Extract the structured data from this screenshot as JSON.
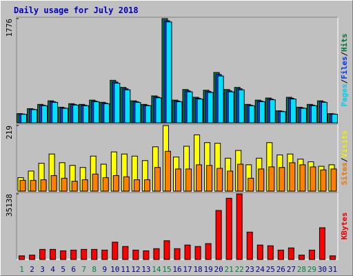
{
  "chart_data": [
    {
      "type": "bar",
      "title": "Daily usage for July 2018",
      "ylim": [
        0,
        1776
      ],
      "yticks": [
        1776
      ],
      "legend_separator": "/",
      "series": [
        {
          "name": "Hits",
          "color": "#008040",
          "values": [
            157,
            242,
            314,
            375,
            266,
            326,
            314,
            387,
            350,
            725,
            604,
            375,
            314,
            459,
            1776,
            387,
            568,
            435,
            556,
            858,
            568,
            604,
            314,
            387,
            423,
            205,
            435,
            266,
            314,
            375,
            157
          ]
        },
        {
          "name": "Files",
          "color": "#0040ff",
          "values": [
            150,
            232,
            301,
            360,
            255,
            313,
            301,
            371,
            336,
            696,
            580,
            360,
            301,
            441,
            1740,
            371,
            545,
            418,
            534,
            824,
            545,
            580,
            301,
            371,
            406,
            197,
            418,
            255,
            301,
            360,
            151
          ]
        },
        {
          "name": "Pages",
          "color": "#00e0ff",
          "values": [
            145,
            225,
            292,
            349,
            247,
            303,
            292,
            360,
            326,
            675,
            562,
            349,
            292,
            427,
            1720,
            360,
            528,
            405,
            517,
            798,
            528,
            562,
            292,
            360,
            393,
            191,
            405,
            247,
            292,
            349,
            146
          ]
        }
      ]
    },
    {
      "type": "bar",
      "ylim": [
        0,
        219
      ],
      "yticks": [
        219
      ],
      "legend_separator": "/",
      "series": [
        {
          "name": "Visits",
          "color": "#ffff00",
          "values": [
            45,
            67,
            93,
            124,
            95,
            86,
            79,
            117,
            90,
            131,
            124,
            117,
            102,
            148,
            219,
            114,
            150,
            188,
            162,
            160,
            110,
            136,
            88,
            110,
            162,
            121,
            124,
            107,
            98,
            83,
            88
          ]
        },
        {
          "name": "Sites",
          "color": "#ff8000",
          "values": [
            36,
            36,
            38,
            52,
            43,
            33,
            38,
            57,
            45,
            52,
            48,
            38,
            38,
            79,
            133,
            74,
            74,
            88,
            86,
            76,
            67,
            90,
            43,
            74,
            81,
            79,
            95,
            88,
            81,
            71,
            74
          ]
        }
      ]
    },
    {
      "type": "bar",
      "ylim": [
        0,
        35138
      ],
      "yticks": [
        35138
      ],
      "categories": [
        "1",
        "2",
        "3",
        "4",
        "5",
        "6",
        "7",
        "8",
        "9",
        "10",
        "11",
        "12",
        "13",
        "14",
        "15",
        "16",
        "17",
        "18",
        "19",
        "20",
        "21",
        "22",
        "23",
        "24",
        "25",
        "26",
        "27",
        "28",
        "29",
        "30",
        "31"
      ],
      "category_colors": [
        "#008040",
        "#000080",
        "#000080",
        "#000080",
        "#000080",
        "#000080",
        "#008040",
        "#008040",
        "#000080",
        "#000080",
        "#000080",
        "#000080",
        "#000080",
        "#008040",
        "#008040",
        "#000080",
        "#000080",
        "#000080",
        "#000080",
        "#000080",
        "#008040",
        "#008040",
        "#000080",
        "#000080",
        "#000080",
        "#000080",
        "#000080",
        "#008040",
        "#008040",
        "#000080",
        "#000080"
      ],
      "series": [
        {
          "name": "KBytes",
          "color": "#ff0000",
          "values": [
            1930,
            2316,
            5400,
            5400,
            4630,
            5020,
            5400,
            5400,
            5020,
            9260,
            6950,
            5020,
            4630,
            5790,
            10040,
            5790,
            7720,
            6950,
            8490,
            26250,
            32810,
            35138,
            14670,
            7720,
            7330,
            5020,
            6180,
            2316,
            5020,
            16990,
            1930
          ]
        }
      ]
    }
  ]
}
